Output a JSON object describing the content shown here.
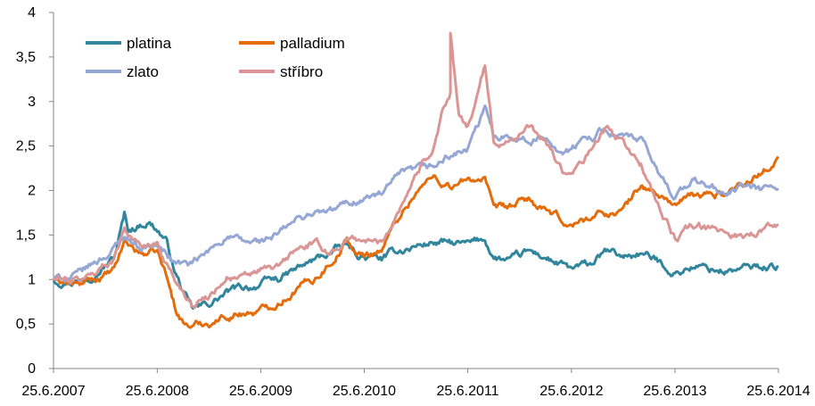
{
  "chart_data": {
    "type": "line",
    "title": "",
    "xlabel": "",
    "ylabel": "",
    "x_start": "25.6.2007",
    "x_end": "25.6.2014",
    "x_ticks": [
      "25.6.2007",
      "25.6.2008",
      "25.6.2009",
      "25.6.2010",
      "25.6.2011",
      "25.6.2012",
      "25.6.2013",
      "25.6.2014"
    ],
    "y_ticks": [
      "0",
      "0,5",
      "1",
      "1,5",
      "2",
      "2,5",
      "3",
      "3,5",
      "4"
    ],
    "ylim": [
      0,
      4
    ],
    "grid": false,
    "legend_position": "top-left",
    "legend_columns": 2,
    "series": [
      {
        "name": "platina",
        "color": "#31859C",
        "values": [
          [
            "25.6.2007",
            1.0
          ],
          [
            "25.9.2007",
            1.0
          ],
          [
            "25.11.2007",
            1.12
          ],
          [
            "25.1.2008",
            1.25
          ],
          [
            "1.3.2008",
            1.72
          ],
          [
            "15.3.2008",
            1.55
          ],
          [
            "25.4.2008",
            1.62
          ],
          [
            "25.5.2008",
            1.66
          ],
          [
            "25.6.2008",
            1.57
          ],
          [
            "25.7.2008",
            1.45
          ],
          [
            "25.8.2008",
            1.1
          ],
          [
            "25.9.2008",
            0.85
          ],
          [
            "25.10.2008",
            0.65
          ],
          [
            "25.11.2008",
            0.68
          ],
          [
            "25.12.2008",
            0.72
          ],
          [
            "25.2.2009",
            0.85
          ],
          [
            "25.4.2009",
            0.9
          ],
          [
            "25.6.2009",
            0.95
          ],
          [
            "25.8.2009",
            1.0
          ],
          [
            "25.10.2009",
            1.1
          ],
          [
            "25.12.2009",
            1.2
          ],
          [
            "25.2.2010",
            1.3
          ],
          [
            "25.4.2010",
            1.38
          ],
          [
            "25.5.2010",
            1.28
          ],
          [
            "25.6.2010",
            1.25
          ],
          [
            "25.8.2010",
            1.22
          ],
          [
            "25.10.2010",
            1.32
          ],
          [
            "25.12.2010",
            1.38
          ],
          [
            "25.2.2011",
            1.42
          ],
          [
            "25.4.2011",
            1.4
          ],
          [
            "25.6.2011",
            1.38
          ],
          [
            "25.8.2011",
            1.45
          ],
          [
            "25.9.2011",
            1.25
          ],
          [
            "25.11.2011",
            1.2
          ],
          [
            "25.1.2012",
            1.3
          ],
          [
            "25.3.2012",
            1.25
          ],
          [
            "25.5.2012",
            1.15
          ],
          [
            "25.6.2012",
            1.1
          ],
          [
            "25.8.2012",
            1.15
          ],
          [
            "25.10.2012",
            1.3
          ],
          [
            "25.12.2012",
            1.25
          ],
          [
            "25.2.2013",
            1.3
          ],
          [
            "25.4.2013",
            1.2
          ],
          [
            "25.6.2013",
            1.08
          ],
          [
            "25.8.2013",
            1.15
          ],
          [
            "25.10.2013",
            1.12
          ],
          [
            "25.12.2013",
            1.1
          ],
          [
            "25.2.2014",
            1.12
          ],
          [
            "25.4.2014",
            1.15
          ],
          [
            "25.6.2014",
            1.15
          ]
        ]
      },
      {
        "name": "palladium",
        "color": "#E46C0A",
        "values": [
          [
            "25.6.2007",
            1.0
          ],
          [
            "25.9.2007",
            0.93
          ],
          [
            "25.11.2007",
            1.0
          ],
          [
            "25.1.2008",
            1.08
          ],
          [
            "1.3.2008",
            1.42
          ],
          [
            "25.4.2008",
            1.3
          ],
          [
            "25.6.2008",
            1.3
          ],
          [
            "25.7.2008",
            1.05
          ],
          [
            "25.8.2008",
            0.7
          ],
          [
            "25.9.2008",
            0.52
          ],
          [
            "25.10.2008",
            0.48
          ],
          [
            "25.12.2008",
            0.52
          ],
          [
            "25.2.2009",
            0.6
          ],
          [
            "25.4.2009",
            0.63
          ],
          [
            "25.6.2009",
            0.65
          ],
          [
            "25.8.2009",
            0.75
          ],
          [
            "25.10.2009",
            0.9
          ],
          [
            "25.12.2009",
            1.0
          ],
          [
            "25.2.2010",
            1.2
          ],
          [
            "25.4.2010",
            1.45
          ],
          [
            "25.5.2010",
            1.3
          ],
          [
            "25.6.2010",
            1.25
          ],
          [
            "25.8.2010",
            1.35
          ],
          [
            "25.10.2010",
            1.7
          ],
          [
            "25.12.2010",
            2.0
          ],
          [
            "25.2.2011",
            2.15
          ],
          [
            "25.4.2011",
            2.05
          ],
          [
            "25.6.2011",
            2.1
          ],
          [
            "25.8.2011",
            2.15
          ],
          [
            "25.9.2011",
            1.75
          ],
          [
            "25.11.2011",
            1.8
          ],
          [
            "25.1.2012",
            1.9
          ],
          [
            "25.3.2012",
            1.75
          ],
          [
            "25.5.2012",
            1.65
          ],
          [
            "25.6.2012",
            1.6
          ],
          [
            "25.8.2012",
            1.7
          ],
          [
            "25.10.2012",
            1.75
          ],
          [
            "25.12.2012",
            1.78
          ],
          [
            "25.2.2013",
            2.05
          ],
          [
            "25.4.2013",
            1.95
          ],
          [
            "25.6.2013",
            1.85
          ],
          [
            "25.8.2013",
            1.92
          ],
          [
            "25.10.2013",
            1.95
          ],
          [
            "25.12.2013",
            1.98
          ],
          [
            "25.2.2014",
            2.1
          ],
          [
            "25.4.2014",
            2.2
          ],
          [
            "25.6.2014",
            2.38
          ]
        ]
      },
      {
        "name": "zlato",
        "color": "#95A7D4",
        "values": [
          [
            "25.6.2007",
            1.0
          ],
          [
            "25.9.2007",
            1.05
          ],
          [
            "25.11.2007",
            1.2
          ],
          [
            "25.1.2008",
            1.35
          ],
          [
            "1.3.2008",
            1.5
          ],
          [
            "25.4.2008",
            1.38
          ],
          [
            "25.6.2008",
            1.38
          ],
          [
            "25.8.2008",
            1.2
          ],
          [
            "25.10.2008",
            1.15
          ],
          [
            "25.12.2008",
            1.3
          ],
          [
            "25.2.2009",
            1.5
          ],
          [
            "25.4.2009",
            1.4
          ],
          [
            "25.6.2009",
            1.42
          ],
          [
            "25.8.2009",
            1.5
          ],
          [
            "25.10.2009",
            1.65
          ],
          [
            "25.12.2009",
            1.75
          ],
          [
            "25.2.2010",
            1.75
          ],
          [
            "25.4.2010",
            1.85
          ],
          [
            "25.6.2010",
            1.92
          ],
          [
            "25.8.2010",
            1.95
          ],
          [
            "25.10.2010",
            2.15
          ],
          [
            "25.12.2010",
            2.2
          ],
          [
            "25.2.2011",
            2.25
          ],
          [
            "25.4.2011",
            2.4
          ],
          [
            "25.6.2011",
            2.45
          ],
          [
            "25.8.2011",
            2.9
          ],
          [
            "25.9.2011",
            2.6
          ],
          [
            "25.11.2011",
            2.65
          ],
          [
            "25.1.2012",
            2.55
          ],
          [
            "25.3.2012",
            2.6
          ],
          [
            "25.5.2012",
            2.45
          ],
          [
            "25.6.2012",
            2.45
          ],
          [
            "25.8.2012",
            2.6
          ],
          [
            "25.10.2012",
            2.7
          ],
          [
            "25.12.2012",
            2.6
          ],
          [
            "25.2.2013",
            2.55
          ],
          [
            "25.4.2013",
            2.2
          ],
          [
            "25.6.2013",
            1.95
          ],
          [
            "25.8.2013",
            2.1
          ],
          [
            "25.10.2013",
            2.05
          ],
          [
            "25.12.2013",
            1.95
          ],
          [
            "25.2.2014",
            2.05
          ],
          [
            "25.4.2014",
            2.0
          ],
          [
            "25.6.2014",
            2.02
          ]
        ]
      },
      {
        "name": "stříbro",
        "color": "#D99694",
        "values": [
          [
            "25.6.2007",
            1.0
          ],
          [
            "25.9.2007",
            0.98
          ],
          [
            "25.11.2007",
            1.1
          ],
          [
            "25.1.2008",
            1.25
          ],
          [
            "1.3.2008",
            1.6
          ],
          [
            "25.4.2008",
            1.38
          ],
          [
            "25.6.2008",
            1.4
          ],
          [
            "25.8.2008",
            1.0
          ],
          [
            "25.10.2008",
            0.75
          ],
          [
            "25.12.2008",
            0.82
          ],
          [
            "25.2.2009",
            1.05
          ],
          [
            "25.4.2009",
            1.0
          ],
          [
            "25.6.2009",
            1.1
          ],
          [
            "25.8.2009",
            1.12
          ],
          [
            "25.10.2009",
            1.32
          ],
          [
            "25.12.2009",
            1.4
          ],
          [
            "25.2.2010",
            1.3
          ],
          [
            "25.4.2010",
            1.45
          ],
          [
            "25.6.2010",
            1.45
          ],
          [
            "25.8.2010",
            1.4
          ],
          [
            "25.10.2010",
            1.8
          ],
          [
            "25.12.2010",
            2.2
          ],
          [
            "25.2.2011",
            2.5
          ],
          [
            "25.3.2011",
            2.9
          ],
          [
            "25.4.2011",
            3.1
          ],
          [
            "25.4.2011",
            3.75
          ],
          [
            "25.5.2011",
            2.8
          ],
          [
            "25.6.2011",
            2.7
          ],
          [
            "25.8.2011",
            3.4
          ],
          [
            "25.9.2011",
            2.5
          ],
          [
            "25.11.2011",
            2.6
          ],
          [
            "25.1.2012",
            2.7
          ],
          [
            "25.3.2012",
            2.55
          ],
          [
            "25.5.2012",
            2.2
          ],
          [
            "25.6.2012",
            2.15
          ],
          [
            "25.8.2012",
            2.4
          ],
          [
            "25.10.2012",
            2.7
          ],
          [
            "25.12.2012",
            2.5
          ],
          [
            "25.2.2013",
            2.3
          ],
          [
            "25.4.2013",
            1.85
          ],
          [
            "25.6.2013",
            1.45
          ],
          [
            "25.8.2013",
            1.6
          ],
          [
            "25.10.2013",
            1.55
          ],
          [
            "25.12.2013",
            1.52
          ],
          [
            "25.2.2014",
            1.5
          ],
          [
            "25.4.2014",
            1.55
          ],
          [
            "25.6.2014",
            1.62
          ]
        ]
      }
    ]
  }
}
